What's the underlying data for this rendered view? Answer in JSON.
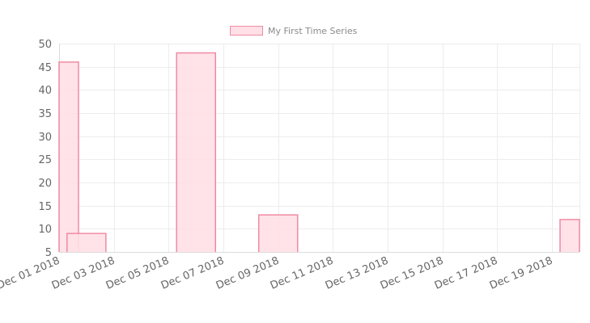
{
  "chart_data": {
    "type": "bar",
    "title": "",
    "xlabel": "",
    "ylabel": "",
    "legend": {
      "position": "top",
      "entries": [
        {
          "name": "My First Time Series",
          "fill": "#ffe0e6",
          "stroke": "#f08aa3"
        }
      ]
    },
    "x_axis": {
      "type": "time",
      "range": [
        "2018-12-01",
        "2018-12-20"
      ],
      "tick_labels": [
        "Dec 01 2018",
        "Dec 03 2018",
        "Dec 05 2018",
        "Dec 07 2018",
        "Dec 09 2018",
        "Dec 11 2018",
        "Dec 13 2018",
        "Dec 15 2018",
        "Dec 17 2018",
        "Dec 19 2018"
      ]
    },
    "y_axis": {
      "range": [
        5,
        50
      ],
      "tick_labels": [
        "50",
        "45",
        "40",
        "35",
        "30",
        "25",
        "20",
        "15",
        "10",
        "5"
      ]
    },
    "grid": true,
    "series": [
      {
        "name": "My First Time Series",
        "points": [
          {
            "x": "2018-12-01",
            "y": 46
          },
          {
            "x": "2018-12-02",
            "y": 9
          },
          {
            "x": "2018-12-06",
            "y": 48
          },
          {
            "x": "2018-12-09",
            "y": 13
          },
          {
            "x": "2018-12-20",
            "y": 12
          }
        ]
      }
    ]
  }
}
